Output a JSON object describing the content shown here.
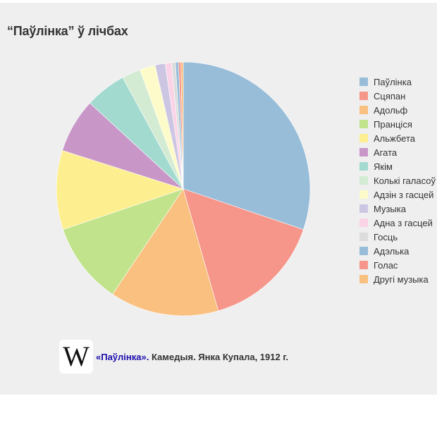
{
  "title": "“Паўлінка” ў лічбах",
  "chart_data": {
    "type": "pie",
    "title": "“Паўлінка” ў лічбах",
    "legend_position": "right",
    "categories": [
      "Паўлінка",
      "Сцяпан",
      "Адольф",
      "Пранціся",
      "Альжбета",
      "Агата",
      "Якім",
      "Колькі галасоў",
      "Адзін з гасцей",
      "Музыка",
      "Адна з гасцей",
      "Госць",
      "Адэлька",
      "Голас",
      "Другі музыка"
    ],
    "values": [
      30.5,
      15.5,
      14.0,
      10.5,
      10.2,
      7.0,
      5.3,
      2.4,
      2.0,
      1.3,
      0.8,
      0.5,
      0.4,
      0.3,
      0.3
    ],
    "colors": [
      "#98bdd9",
      "#f6958a",
      "#f9c07f",
      "#c0e38b",
      "#fdef8f",
      "#c897c8",
      "#a3dad0",
      "#d3ebd3",
      "#fdfbc9",
      "#cdc6e3",
      "#fbd3e6",
      "#dcdcdc",
      "#98bdd9",
      "#f6958a",
      "#f9c07f"
    ]
  },
  "source": {
    "logo_letter": "W",
    "link_text": "«Паўлінка».",
    "text": " Камедыя. Янка Купала, 1912 г."
  }
}
